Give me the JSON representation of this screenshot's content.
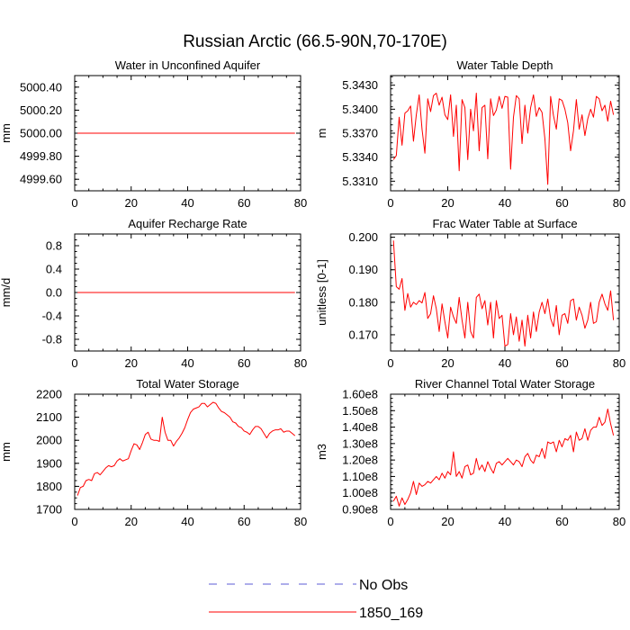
{
  "title": "Russian Arctic (66.5-90N,70-170E)",
  "legend": {
    "no_obs_label": "No Obs",
    "run_label": "1850_169",
    "no_obs_color": "#5b5bd6",
    "run_color": "#ff0000"
  },
  "chart_data": [
    {
      "type": "line",
      "title": "Water in Unconfined Aquifer",
      "ylabel": "mm",
      "xlabel": "",
      "xlim": [
        0,
        80
      ],
      "ylim": [
        4999.5,
        5000.5
      ],
      "xticks": [
        0,
        20,
        40,
        60,
        80
      ],
      "yticks": [
        4999.6,
        4999.8,
        5000.0,
        5000.2,
        5000.4
      ],
      "ytick_labels": [
        "4999.60",
        "4999.80",
        "5000.00",
        "5000.20",
        "5000.40"
      ],
      "series": [
        {
          "name": "1850_169",
          "x_start": 1,
          "values": [
            5000,
            5000,
            5000,
            5000,
            5000,
            5000,
            5000,
            5000,
            5000,
            5000,
            5000,
            5000,
            5000,
            5000,
            5000,
            5000,
            5000,
            5000,
            5000,
            5000,
            5000,
            5000,
            5000,
            5000,
            5000,
            5000,
            5000,
            5000,
            5000,
            5000,
            5000,
            5000,
            5000,
            5000,
            5000,
            5000,
            5000,
            5000,
            5000,
            5000,
            5000,
            5000,
            5000,
            5000,
            5000,
            5000,
            5000,
            5000,
            5000,
            5000,
            5000,
            5000,
            5000,
            5000,
            5000,
            5000,
            5000,
            5000,
            5000,
            5000,
            5000,
            5000,
            5000,
            5000,
            5000,
            5000,
            5000,
            5000,
            5000,
            5000,
            5000,
            5000,
            5000,
            5000,
            5000,
            5000,
            5000,
            5000
          ]
        }
      ]
    },
    {
      "type": "line",
      "title": "Water Table Depth",
      "ylabel": "m",
      "xlabel": "",
      "xlim": [
        0,
        80
      ],
      "ylim": [
        5.3298,
        5.3442
      ],
      "xticks": [
        0,
        20,
        40,
        60,
        80
      ],
      "yticks": [
        5.331,
        5.334,
        5.337,
        5.34,
        5.343
      ],
      "ytick_labels": [
        "5.3310",
        "5.3340",
        "5.3370",
        "5.3400",
        "5.3430"
      ],
      "series": [
        {
          "name": "1850_169",
          "x_start": 1,
          "values": [
            5.3337,
            5.3342,
            5.339,
            5.3355,
            5.3395,
            5.3398,
            5.3404,
            5.336,
            5.3393,
            5.3418,
            5.3375,
            5.3345,
            5.3413,
            5.3397,
            5.3417,
            5.342,
            5.3405,
            5.3415,
            5.3393,
            5.3387,
            5.3418,
            5.3366,
            5.3405,
            5.3323,
            5.3412,
            5.3402,
            5.3337,
            5.34,
            5.3373,
            5.342,
            5.3348,
            5.3402,
            5.3405,
            5.3338,
            5.3413,
            5.3392,
            5.3399,
            5.3416,
            5.3401,
            5.3416,
            5.3415,
            5.3325,
            5.339,
            5.3417,
            5.3413,
            5.3357,
            5.3405,
            5.337,
            5.3402,
            5.3418,
            5.3391,
            5.3402,
            5.3396,
            5.3363,
            5.3306,
            5.3416,
            5.3392,
            5.3375,
            5.3413,
            5.3411,
            5.34,
            5.3383,
            5.3348,
            5.3373,
            5.3412,
            5.3375,
            5.3393,
            5.3367,
            5.3388,
            5.34,
            5.339,
            5.3416,
            5.3413,
            5.3398,
            5.3405,
            5.3385,
            5.341,
            5.3393
          ]
        }
      ]
    },
    {
      "type": "line",
      "title": "Aquifer Recharge Rate",
      "ylabel": "mm/d",
      "xlabel": "",
      "xlim": [
        0,
        80
      ],
      "ylim": [
        -1.0,
        1.0
      ],
      "xticks": [
        0,
        20,
        40,
        60,
        80
      ],
      "yticks": [
        -0.8,
        -0.4,
        0.0,
        0.4,
        0.8
      ],
      "ytick_labels": [
        "-0.8",
        "-0.4",
        "0.0",
        "0.4",
        "0.8"
      ],
      "series": [
        {
          "name": "1850_169",
          "x_start": 1,
          "values": [
            0,
            0,
            0,
            0,
            0,
            0,
            0,
            0,
            0,
            0,
            0,
            0,
            0,
            0,
            0,
            0,
            0,
            0,
            0,
            0,
            0,
            0,
            0,
            0,
            0,
            0,
            0,
            0,
            0,
            0,
            0,
            0,
            0,
            0,
            0,
            0,
            0,
            0,
            0,
            0,
            0,
            0,
            0,
            0,
            0,
            0,
            0,
            0,
            0,
            0,
            0,
            0,
            0,
            0,
            0,
            0,
            0,
            0,
            0,
            0,
            0,
            0,
            0,
            0,
            0,
            0,
            0,
            0,
            0,
            0,
            0,
            0,
            0,
            0,
            0,
            0,
            0,
            0
          ]
        }
      ]
    },
    {
      "type": "line",
      "title": "Frac Water Table at Surface",
      "ylabel": "unitless [0-1]",
      "xlabel": "",
      "xlim": [
        0,
        80
      ],
      "ylim": [
        0.165,
        0.201
      ],
      "xticks": [
        0,
        20,
        40,
        60,
        80
      ],
      "yticks": [
        0.17,
        0.18,
        0.19,
        0.2
      ],
      "ytick_labels": [
        "0.170",
        "0.180",
        "0.190",
        "0.200"
      ],
      "series": [
        {
          "name": "1850_169",
          "x_start": 1,
          "values": [
            0.199,
            0.1848,
            0.184,
            0.1873,
            0.1775,
            0.1827,
            0.1785,
            0.18,
            0.1793,
            0.1805,
            0.1798,
            0.183,
            0.175,
            0.1765,
            0.182,
            0.178,
            0.171,
            0.1795,
            0.174,
            0.169,
            0.1785,
            0.1755,
            0.1735,
            0.1815,
            0.1745,
            0.169,
            0.18,
            0.171,
            0.169,
            0.1815,
            0.1825,
            0.178,
            0.1805,
            0.173,
            0.18,
            0.169,
            0.1805,
            0.175,
            0.176,
            0.1665,
            0.167,
            0.1765,
            0.17,
            0.1755,
            0.168,
            0.1745,
            0.1665,
            0.176,
            0.169,
            0.177,
            0.171,
            0.177,
            0.18,
            0.1765,
            0.181,
            0.175,
            0.1725,
            0.179,
            0.17,
            0.176,
            0.1765,
            0.1735,
            0.1805,
            0.181,
            0.1745,
            0.1785,
            0.176,
            0.172,
            0.1745,
            0.18,
            0.1735,
            0.174,
            0.18,
            0.1825,
            0.1795,
            0.1775,
            0.1835,
            0.1745
          ]
        }
      ]
    },
    {
      "type": "line",
      "title": "Total Water Storage",
      "ylabel": "mm",
      "xlabel": "",
      "xlim": [
        0,
        80
      ],
      "ylim": [
        1700,
        2200
      ],
      "xticks": [
        0,
        20,
        40,
        60,
        80
      ],
      "yticks": [
        1700,
        1800,
        1900,
        2000,
        2100,
        2200
      ],
      "ytick_labels": [
        "1700",
        "1800",
        "1900",
        "2000",
        "2100",
        "2200"
      ],
      "series": [
        {
          "name": "1850_169",
          "x_start": 1,
          "values": [
            1760,
            1795,
            1800,
            1825,
            1830,
            1825,
            1855,
            1860,
            1850,
            1865,
            1880,
            1890,
            1885,
            1890,
            1910,
            1920,
            1910,
            1915,
            1920,
            1955,
            1985,
            1980,
            1960,
            1990,
            2025,
            2035,
            2005,
            2000,
            2000,
            1995,
            2100,
            2035,
            2000,
            2000,
            1975,
            1995,
            2010,
            2030,
            2055,
            2090,
            2120,
            2135,
            2140,
            2145,
            2160,
            2160,
            2145,
            2155,
            2165,
            2160,
            2140,
            2125,
            2120,
            2110,
            2100,
            2080,
            2075,
            2060,
            2055,
            2040,
            2035,
            2025,
            2045,
            2060,
            2060,
            2050,
            2030,
            2010,
            2030,
            2040,
            2045,
            2045,
            2050,
            2035,
            2040,
            2040,
            2030,
            2020
          ]
        }
      ]
    },
    {
      "type": "line",
      "title": "River Channel Total Water Storage",
      "ylabel": "m3",
      "xlabel": "",
      "xlim": [
        0,
        80
      ],
      "ylim": [
        90000000.0,
        160000000.0
      ],
      "xticks": [
        0,
        20,
        40,
        60,
        80
      ],
      "yticks": [
        90000000.0,
        100000000.0,
        110000000.0,
        120000000.0,
        130000000.0,
        140000000.0,
        150000000.0,
        160000000.0
      ],
      "ytick_labels": [
        "0.90e8",
        "1.00e8",
        "1.10e8",
        "1.20e8",
        "1.30e8",
        "1.40e8",
        "1.50e8",
        "1.60e8"
      ],
      "series": [
        {
          "name": "1850_169",
          "x_start": 1,
          "values": [
            95000000.0,
            98000000.0,
            92000000.0,
            97000000.0,
            93000000.0,
            96000000.0,
            100000000.0,
            107000000.0,
            99000000.0,
            106000000.0,
            104000000.0,
            105000000.0,
            107000000.0,
            106000000.0,
            108000000.0,
            110000000.0,
            108000000.0,
            112000000.0,
            109000000.0,
            113000000.0,
            111000000.0,
            125000000.0,
            110000000.0,
            113000000.0,
            109000000.0,
            116000000.0,
            117000000.0,
            111000000.0,
            112000000.0,
            121000000.0,
            114000000.0,
            117000000.0,
            113000000.0,
            119000000.0,
            115000000.0,
            112000000.0,
            118000000.0,
            119000000.0,
            117000000.0,
            119000000.0,
            121000000.0,
            119000000.0,
            117000000.0,
            120000000.0,
            119000000.0,
            116000000.0,
            122000000.0,
            124000000.0,
            120000000.0,
            118000000.0,
            123000000.0,
            122000000.0,
            127000000.0,
            121000000.0,
            131000000.0,
            130000000.0,
            131000000.0,
            125000000.0,
            132000000.0,
            128000000.0,
            133000000.0,
            132000000.0,
            135000000.0,
            125000000.0,
            137000000.0,
            132000000.0,
            133000000.0,
            139000000.0,
            132000000.0,
            138000000.0,
            140000000.0,
            140000000.0,
            146000000.0,
            141000000.0,
            143000000.0,
            151000000.0,
            142000000.0,
            135000000.0
          ]
        }
      ]
    }
  ]
}
